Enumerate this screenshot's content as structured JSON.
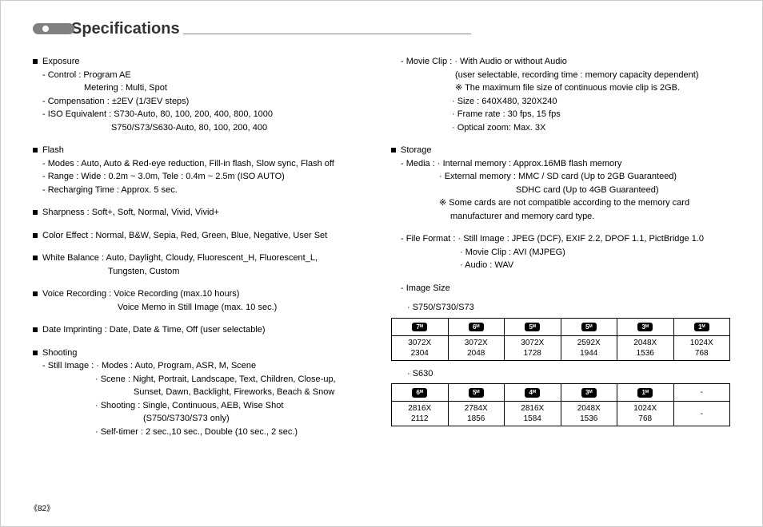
{
  "title": "Specifications",
  "page": "《82》",
  "left": {
    "exposure": {
      "head": "Exposure",
      "control": "- Control : Program AE",
      "metering": "Metering : Multi, Spot",
      "comp": "- Compensation  : ±2EV (1/3EV steps)",
      "iso1": "- ISO Equivalent : S730-Auto, 80, 100, 200, 400, 800, 1000",
      "iso2": "S750/S73/S630-Auto, 80, 100, 200, 400"
    },
    "flash": {
      "head": "Flash",
      "modes": "- Modes : Auto, Auto & Red-eye reduction, Fill-in flash, Slow sync, Flash off",
      "range": "- Range : Wide : 0.2m ~ 3.0m, Tele : 0.4m ~ 2.5m (ISO AUTO)",
      "recharge": "- Recharging Time : Approx. 5 sec."
    },
    "sharpness": "Sharpness : Soft+, Soft, Normal, Vivid, Vivid+",
    "coloreffect": "Color Effect : Normal, B&W, Sepia, Red, Green, Blue, Negative, User Set",
    "wb1": "White Balance : Auto, Daylight, Cloudy, Fluorescent_H, Fluorescent_L,",
    "wb2": "Tungsten, Custom",
    "vr1": "Voice Recording : Voice Recording (max.10 hours)",
    "vr2": "Voice Memo in Still Image (max. 10 sec.)",
    "date": "Date Imprinting : Date, Date & Time, Off (user selectable)",
    "shooting": {
      "head": "Shooting",
      "still": "- Still Image : · Modes : Auto, Program, ASR, M, Scene",
      "scene1": "· Scene : Night, Portrait, Landscape, Text, Children, Close-up,",
      "scene2": "Sunset, Dawn, Backlight, Fireworks, Beach & Snow",
      "shoot1": "· Shooting : Single, Continuous, AEB, Wise Shot",
      "shoot2": "(S750/S730/S73 only)",
      "self": "· Self-timer : 2 sec.,10 sec., Double (10 sec., 2 sec.)"
    }
  },
  "right": {
    "movie": {
      "l1": "- Movie Clip : · With Audio or without Audio",
      "l2": "(user selectable, recording time : memory capacity dependent)",
      "l3": "※ The maximum file size of continuous movie clip is 2GB.",
      "size": "· Size : 640X480, 320X240",
      "fps": "· Frame rate : 30 fps, 15 fps",
      "zoom": "· Optical zoom: Max. 3X"
    },
    "storage": {
      "head": "Storage",
      "media": "- Media : · Internal memory   : Approx.16MB flash memory",
      "ext1": "· External memory : MMC / SD card (Up to 2GB Guaranteed)",
      "ext2": "SDHC card (Up to 4GB Guaranteed)",
      "note1": "※ Some cards are not compatible according to the memory card",
      "note2": "manufacturer and memory card type.",
      "ff1": "- File Format :  · Still Image : JPEG (DCF), EXIF 2.2, DPOF 1.1, PictBridge 1.0",
      "ff2": "· Movie Clip : AVI (MJPEG)",
      "ff3": "· Audio : WAV",
      "img": "- Image Size",
      "cap1": "· S750/S730/S73",
      "cap2": "· S630"
    },
    "table1": {
      "icons": [
        "7ᴹ",
        "6ᴹ",
        "5ᴹ",
        "5ᴹ",
        "3ᴹ",
        "1ᴹ"
      ],
      "rows": [
        [
          "3072X",
          "3072X",
          "3072X",
          "2592X",
          "2048X",
          "1024X"
        ],
        [
          "2304",
          "2048",
          "1728",
          "1944",
          "1536",
          "768"
        ]
      ]
    },
    "table2": {
      "icons": [
        "6ᴹ",
        "5ᴹ",
        "4ᴹ",
        "3ᴹ",
        "1ᴹ",
        "-"
      ],
      "rows": [
        [
          "2816X",
          "2784X",
          "2816X",
          "2048X",
          "1024X",
          "-"
        ],
        [
          "2112",
          "1856",
          "1584",
          "1536",
          "768",
          ""
        ]
      ]
    }
  }
}
